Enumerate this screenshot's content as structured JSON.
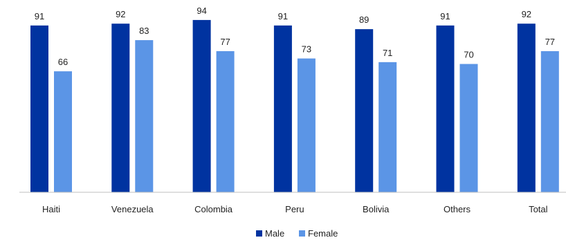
{
  "chart_data": {
    "type": "bar",
    "categories": [
      "Haiti",
      "Venezuela",
      "Colombia",
      "Peru",
      "Bolivia",
      "Others",
      "Total"
    ],
    "series": [
      {
        "name": "Male",
        "color": "#0033a0",
        "values": [
          91,
          92,
          94,
          91,
          89,
          91,
          92
        ]
      },
      {
        "name": "Female",
        "color": "#5b95e6",
        "values": [
          66,
          83,
          77,
          73,
          71,
          70,
          77
        ]
      }
    ],
    "ylim": [
      0,
      100
    ],
    "grid": false,
    "legend": "bottom-center",
    "data_labels": true
  }
}
